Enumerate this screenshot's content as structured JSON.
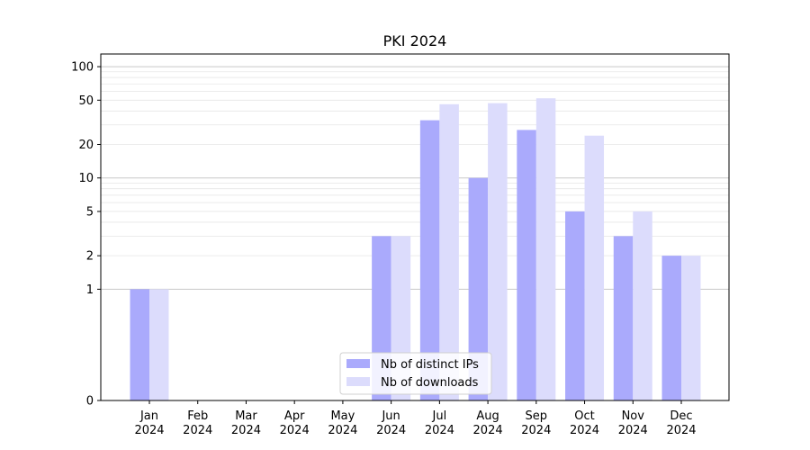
{
  "chart_data": {
    "type": "bar",
    "title": "PKI 2024",
    "xlabel": "",
    "ylabel": "",
    "yscale": "symlog",
    "ylim": [
      0,
      130
    ],
    "y_ticks": [
      0,
      1,
      2,
      5,
      10,
      20,
      50,
      100
    ],
    "y_tick_labels": [
      "0",
      "1",
      "2",
      "5",
      "10",
      "20",
      "50",
      "100"
    ],
    "grid": "horizontal",
    "categories": [
      "Jan\n2024",
      "Feb\n2024",
      "Mar\n2024",
      "Apr\n2024",
      "May\n2024",
      "Jun\n2024",
      "Jul\n2024",
      "Aug\n2024",
      "Sep\n2024",
      "Oct\n2024",
      "Nov\n2024",
      "Dec\n2024"
    ],
    "series": [
      {
        "name": "Nb of distinct IPs",
        "color": "#aaaafc",
        "values": [
          1,
          0,
          0,
          0,
          0,
          3,
          33,
          10,
          27,
          5,
          3,
          2
        ]
      },
      {
        "name": "Nb of downloads",
        "color": "#dcdcfc",
        "values": [
          1,
          0,
          0,
          0,
          0,
          3,
          46,
          47,
          52,
          24,
          5,
          2
        ]
      }
    ],
    "legend": {
      "position": "bottom-center"
    }
  }
}
